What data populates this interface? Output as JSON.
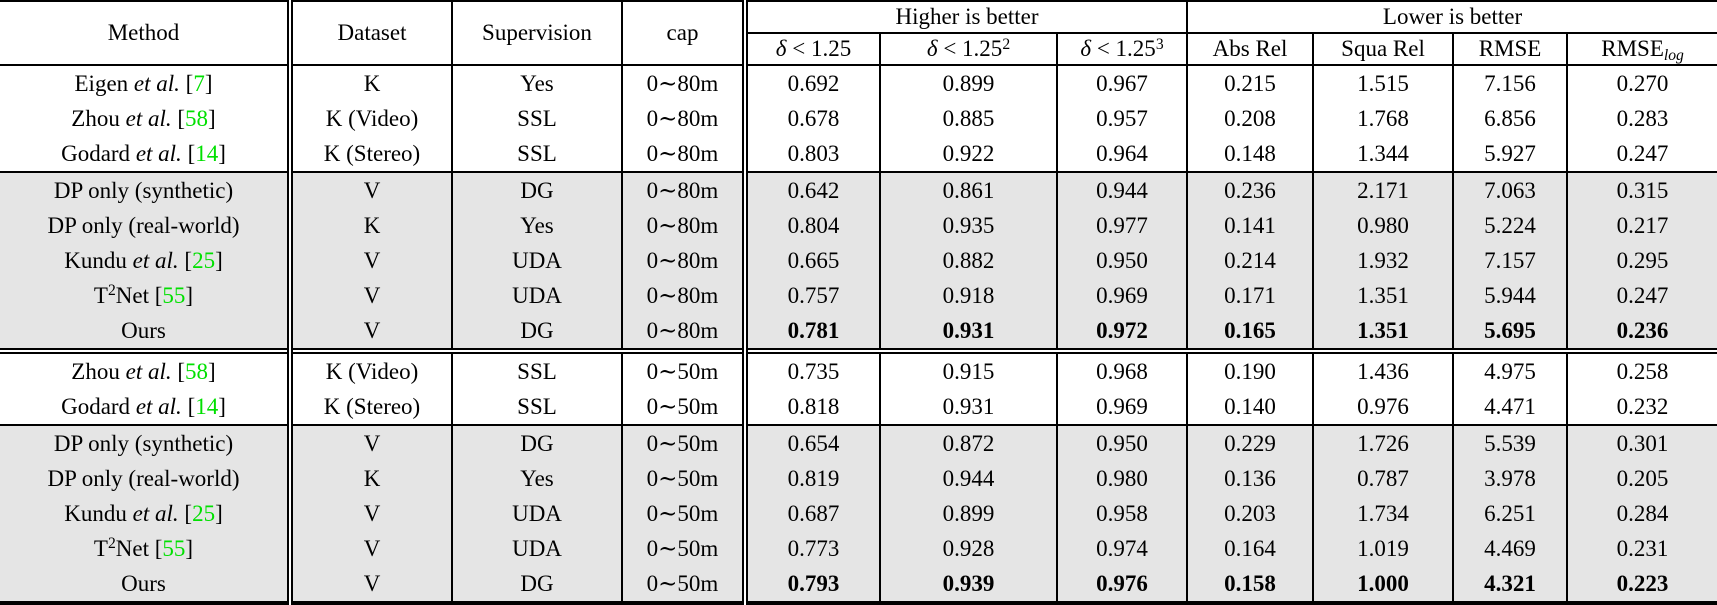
{
  "colors": {
    "citation_green": "#00e000",
    "shaded_row_background": "#e5e5e5"
  },
  "table": {
    "header": {
      "method": "Method",
      "dataset": "Dataset",
      "supervision": "Supervision",
      "cap": "cap",
      "higher_group": "Higher is better",
      "lower_group": "Lower is better",
      "metric_cols": [
        {
          "segments": [
            {
              "t": "δ",
              "s": "i"
            },
            {
              "t": " < 1.25",
              "s": "p"
            }
          ]
        },
        {
          "segments": [
            {
              "t": "δ",
              "s": "i"
            },
            {
              "t": " < 1.25",
              "s": "p"
            },
            {
              "t": "2",
              "s": "sup"
            }
          ]
        },
        {
          "segments": [
            {
              "t": "δ",
              "s": "i"
            },
            {
              "t": " < 1.25",
              "s": "p"
            },
            {
              "t": "3",
              "s": "sup"
            }
          ]
        },
        {
          "segments": [
            {
              "t": "Abs Rel",
              "s": "p"
            }
          ]
        },
        {
          "segments": [
            {
              "t": "Squa Rel",
              "s": "p"
            }
          ]
        },
        {
          "segments": [
            {
              "t": "RMSE",
              "s": "p"
            }
          ]
        },
        {
          "segments": [
            {
              "t": "RMSE",
              "s": "p"
            },
            {
              "t": "log",
              "s": "sub"
            }
          ]
        }
      ]
    },
    "rows": [
      {
        "method": [
          {
            "t": "Eigen ",
            "s": "p"
          },
          {
            "t": "et al.",
            "s": "i"
          },
          {
            "t": " [",
            "s": "p"
          },
          {
            "t": "7",
            "s": "c"
          },
          {
            "t": "]",
            "s": "p"
          }
        ],
        "dataset": "K",
        "supervision": "Yes",
        "cap": "0∼80m",
        "values": [
          "0.692",
          "0.899",
          "0.967",
          "0.215",
          "1.515",
          "7.156",
          "0.270"
        ],
        "shaded": false,
        "bold_values": false,
        "rule_above": null
      },
      {
        "method": [
          {
            "t": "Zhou ",
            "s": "p"
          },
          {
            "t": "et al.",
            "s": "i"
          },
          {
            "t": " [",
            "s": "p"
          },
          {
            "t": "58",
            "s": "c"
          },
          {
            "t": "]",
            "s": "p"
          }
        ],
        "dataset": "K (Video)",
        "supervision": "SSL",
        "cap": "0∼80m",
        "values": [
          "0.678",
          "0.885",
          "0.957",
          "0.208",
          "1.768",
          "6.856",
          "0.283"
        ],
        "shaded": false,
        "bold_values": false,
        "rule_above": null
      },
      {
        "method": [
          {
            "t": "Godard ",
            "s": "p"
          },
          {
            "t": "et al.",
            "s": "i"
          },
          {
            "t": " [",
            "s": "p"
          },
          {
            "t": "14",
            "s": "c"
          },
          {
            "t": "]",
            "s": "p"
          }
        ],
        "dataset": "K (Stereo)",
        "supervision": "SSL",
        "cap": "0∼80m",
        "values": [
          "0.803",
          "0.922",
          "0.964",
          "0.148",
          "1.344",
          "5.927",
          "0.247"
        ],
        "shaded": false,
        "bold_values": false,
        "rule_above": null
      },
      {
        "method": [
          {
            "t": "DP only (synthetic)",
            "s": "p"
          }
        ],
        "dataset": "V",
        "supervision": "DG",
        "cap": "0∼80m",
        "values": [
          "0.642",
          "0.861",
          "0.944",
          "0.236",
          "2.171",
          "7.063",
          "0.315"
        ],
        "shaded": true,
        "bold_values": false,
        "rule_above": "single"
      },
      {
        "method": [
          {
            "t": "DP only (real-world)",
            "s": "p"
          }
        ],
        "dataset": "K",
        "supervision": "Yes",
        "cap": "0∼80m",
        "values": [
          "0.804",
          "0.935",
          "0.977",
          "0.141",
          "0.980",
          "5.224",
          "0.217"
        ],
        "shaded": true,
        "bold_values": false,
        "rule_above": null
      },
      {
        "method": [
          {
            "t": "Kundu ",
            "s": "p"
          },
          {
            "t": "et al.",
            "s": "i"
          },
          {
            "t": " [",
            "s": "p"
          },
          {
            "t": "25",
            "s": "c"
          },
          {
            "t": "]",
            "s": "p"
          }
        ],
        "dataset": "V",
        "supervision": "UDA",
        "cap": "0∼80m",
        "values": [
          "0.665",
          "0.882",
          "0.950",
          "0.214",
          "1.932",
          "7.157",
          "0.295"
        ],
        "shaded": true,
        "bold_values": false,
        "rule_above": null
      },
      {
        "method": [
          {
            "t": "T",
            "s": "p"
          },
          {
            "t": "2",
            "s": "sup"
          },
          {
            "t": "Net [",
            "s": "p"
          },
          {
            "t": "55",
            "s": "c"
          },
          {
            "t": "]",
            "s": "p"
          }
        ],
        "dataset": "V",
        "supervision": "UDA",
        "cap": "0∼80m",
        "values": [
          "0.757",
          "0.918",
          "0.969",
          "0.171",
          "1.351",
          "5.944",
          "0.247"
        ],
        "shaded": true,
        "bold_values": false,
        "rule_above": null
      },
      {
        "method": [
          {
            "t": "Ours",
            "s": "p"
          }
        ],
        "dataset": "V",
        "supervision": "DG",
        "cap": "0∼80m",
        "values": [
          "0.781",
          "0.931",
          "0.972",
          "0.165",
          "1.351",
          "5.695",
          "0.236"
        ],
        "shaded": true,
        "bold_values": true,
        "rule_above": null
      },
      {
        "method": [
          {
            "t": "Zhou ",
            "s": "p"
          },
          {
            "t": "et al.",
            "s": "i"
          },
          {
            "t": " [",
            "s": "p"
          },
          {
            "t": "58",
            "s": "c"
          },
          {
            "t": "]",
            "s": "p"
          }
        ],
        "dataset": "K (Video)",
        "supervision": "SSL",
        "cap": "0∼50m",
        "values": [
          "0.735",
          "0.915",
          "0.968",
          "0.190",
          "1.436",
          "4.975",
          "0.258"
        ],
        "shaded": false,
        "bold_values": false,
        "rule_above": "double"
      },
      {
        "method": [
          {
            "t": "Godard ",
            "s": "p"
          },
          {
            "t": "et al.",
            "s": "i"
          },
          {
            "t": " [",
            "s": "p"
          },
          {
            "t": "14",
            "s": "c"
          },
          {
            "t": "]",
            "s": "p"
          }
        ],
        "dataset": "K (Stereo)",
        "supervision": "SSL",
        "cap": "0∼50m",
        "values": [
          "0.818",
          "0.931",
          "0.969",
          "0.140",
          "0.976",
          "4.471",
          "0.232"
        ],
        "shaded": false,
        "bold_values": false,
        "rule_above": null
      },
      {
        "method": [
          {
            "t": "DP only (synthetic)",
            "s": "p"
          }
        ],
        "dataset": "V",
        "supervision": "DG",
        "cap": "0∼50m",
        "values": [
          "0.654",
          "0.872",
          "0.950",
          "0.229",
          "1.726",
          "5.539",
          "0.301"
        ],
        "shaded": true,
        "bold_values": false,
        "rule_above": "single"
      },
      {
        "method": [
          {
            "t": "DP only (real-world)",
            "s": "p"
          }
        ],
        "dataset": "K",
        "supervision": "Yes",
        "cap": "0∼50m",
        "values": [
          "0.819",
          "0.944",
          "0.980",
          "0.136",
          "0.787",
          "3.978",
          "0.205"
        ],
        "shaded": true,
        "bold_values": false,
        "rule_above": null
      },
      {
        "method": [
          {
            "t": "Kundu ",
            "s": "p"
          },
          {
            "t": "et al.",
            "s": "i"
          },
          {
            "t": " [",
            "s": "p"
          },
          {
            "t": "25",
            "s": "c"
          },
          {
            "t": "]",
            "s": "p"
          }
        ],
        "dataset": "V",
        "supervision": "UDA",
        "cap": "0∼50m",
        "values": [
          "0.687",
          "0.899",
          "0.958",
          "0.203",
          "1.734",
          "6.251",
          "0.284"
        ],
        "shaded": true,
        "bold_values": false,
        "rule_above": null
      },
      {
        "method": [
          {
            "t": "T",
            "s": "p"
          },
          {
            "t": "2",
            "s": "sup"
          },
          {
            "t": "Net [",
            "s": "p"
          },
          {
            "t": "55",
            "s": "c"
          },
          {
            "t": "]",
            "s": "p"
          }
        ],
        "dataset": "V",
        "supervision": "UDA",
        "cap": "0∼50m",
        "values": [
          "0.773",
          "0.928",
          "0.974",
          "0.164",
          "1.019",
          "4.469",
          "0.231"
        ],
        "shaded": true,
        "bold_values": false,
        "rule_above": null
      },
      {
        "method": [
          {
            "t": "Ours",
            "s": "p"
          }
        ],
        "dataset": "V",
        "supervision": "DG",
        "cap": "0∼50m",
        "values": [
          "0.793",
          "0.939",
          "0.976",
          "0.158",
          "1.000",
          "4.321",
          "0.223"
        ],
        "shaded": true,
        "bold_values": true,
        "rule_above": null
      }
    ]
  }
}
